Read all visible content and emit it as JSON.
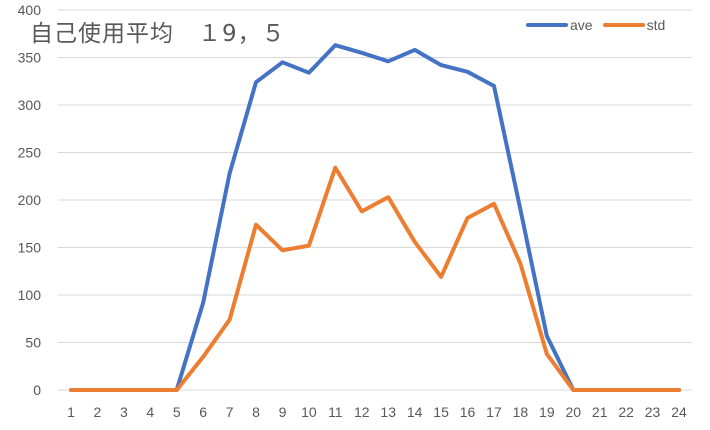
{
  "chart_data": {
    "type": "line",
    "title": "自己使用平均　１9，５",
    "xlabel": "",
    "ylabel": "",
    "ylim": [
      0,
      400
    ],
    "yticks": [
      0,
      50,
      100,
      150,
      200,
      250,
      300,
      350,
      400
    ],
    "grid": true,
    "legend_position": "top-right",
    "categories": [
      "1",
      "2",
      "3",
      "4",
      "5",
      "6",
      "7",
      "8",
      "9",
      "10",
      "11",
      "12",
      "13",
      "14",
      "15",
      "16",
      "17",
      "18",
      "19",
      "20",
      "21",
      "22",
      "23",
      "24"
    ],
    "series": [
      {
        "name": "ave",
        "color": "#4472C4",
        "values": [
          0,
          0,
          0,
          0,
          0,
          92,
          228,
          324,
          345,
          334,
          363,
          355,
          346,
          358,
          342,
          335,
          320,
          190,
          57,
          0,
          0,
          0,
          0,
          0
        ]
      },
      {
        "name": "std",
        "color": "#ED7D31",
        "values": [
          0,
          0,
          0,
          0,
          0,
          35,
          74,
          174,
          147,
          152,
          234,
          188,
          203,
          156,
          119,
          181,
          196,
          133,
          38,
          0,
          0,
          0,
          0,
          0
        ]
      }
    ]
  },
  "colors": {
    "gridline": "#D9D9D9",
    "text": "#595959"
  }
}
